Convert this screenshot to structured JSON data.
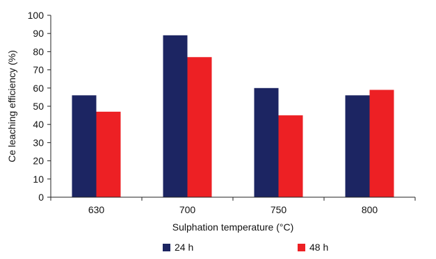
{
  "chart_data": {
    "type": "bar",
    "title": "",
    "xlabel": "Sulphation temperature (°C)",
    "ylabel": "Ce leaching efficiency (%)",
    "categories": [
      "630",
      "700",
      "750",
      "800"
    ],
    "series": [
      {
        "name": "24 h",
        "values": [
          56,
          89,
          60,
          56
        ],
        "color": "#1c2562"
      },
      {
        "name": "48 h",
        "values": [
          47,
          77,
          45,
          59
        ],
        "color": "#ed2024"
      }
    ],
    "ylim": [
      0,
      100
    ],
    "yticks": [
      "0",
      "10",
      "20",
      "30",
      "40",
      "50",
      "60",
      "70",
      "80",
      "90",
      "100"
    ],
    "grid": false,
    "legend_position": "bottom"
  }
}
